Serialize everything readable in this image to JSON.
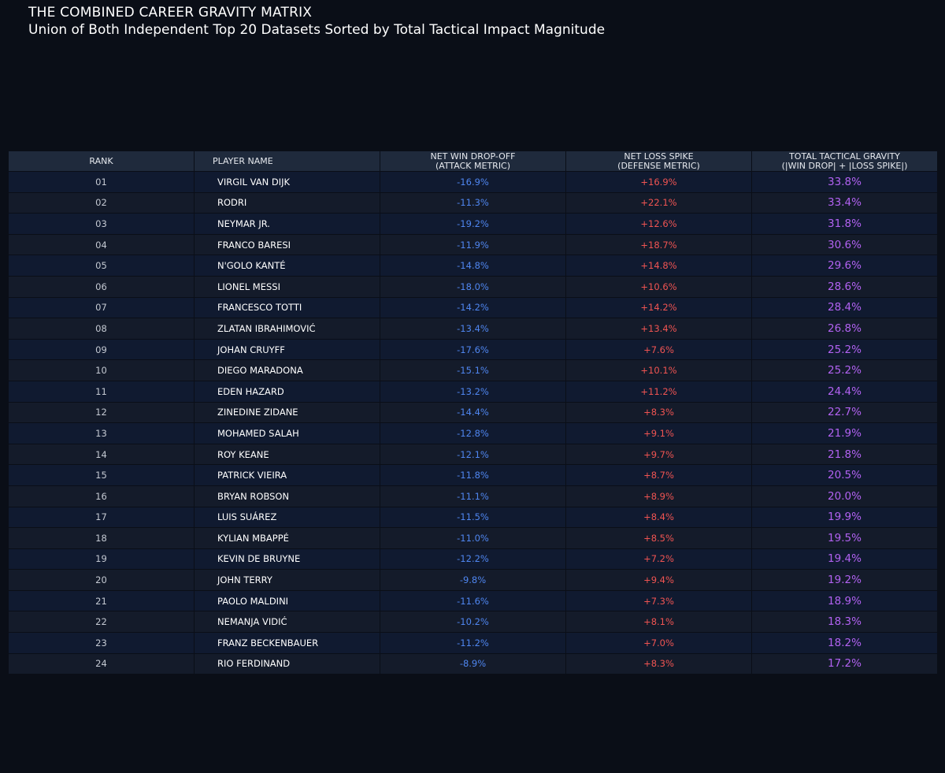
{
  "title": "THE COMBINED CAREER GRAVITY MATRIX",
  "subtitle": "Union of Both Independent Top 20 Datasets Sorted by Total Tactical Impact Magnitude",
  "colors": {
    "background": "#0a0e17",
    "header": "#1f2a3c",
    "attack": "#4f86f0",
    "defense": "#f05452",
    "gravity": "#b262f2"
  },
  "chart_data": {
    "type": "table",
    "title": "THE COMBINED CAREER GRAVITY MATRIX",
    "subtitle": "Union of Both Independent Top 20 Datasets Sorted by Total Tactical Impact Magnitude",
    "columns": [
      {
        "line1": "RANK",
        "line2": ""
      },
      {
        "line1": "PLAYER NAME",
        "line2": ""
      },
      {
        "line1": "NET WIN DROP-OFF",
        "line2": "(ATTACK METRIC)"
      },
      {
        "line1": "NET LOSS SPIKE",
        "line2": "(DEFENSE METRIC)"
      },
      {
        "line1": "TOTAL TACTICAL GRAVITY",
        "line2": "(|WIN DROP| + |LOSS SPIKE|)"
      }
    ],
    "rows": [
      {
        "rank": "01",
        "name": "VIRGIL VAN DIJK",
        "attack": "-16.9%",
        "defense": "+16.9%",
        "gravity": "33.8%"
      },
      {
        "rank": "02",
        "name": "RODRI",
        "attack": "-11.3%",
        "defense": "+22.1%",
        "gravity": "33.4%"
      },
      {
        "rank": "03",
        "name": "NEYMAR JR.",
        "attack": "-19.2%",
        "defense": "+12.6%",
        "gravity": "31.8%"
      },
      {
        "rank": "04",
        "name": "FRANCO BARESI",
        "attack": "-11.9%",
        "defense": "+18.7%",
        "gravity": "30.6%"
      },
      {
        "rank": "05",
        "name": "N'GOLO KANTÉ",
        "attack": "-14.8%",
        "defense": "+14.8%",
        "gravity": "29.6%"
      },
      {
        "rank": "06",
        "name": "LIONEL MESSI",
        "attack": "-18.0%",
        "defense": "+10.6%",
        "gravity": "28.6%"
      },
      {
        "rank": "07",
        "name": "FRANCESCO TOTTI",
        "attack": "-14.2%",
        "defense": "+14.2%",
        "gravity": "28.4%"
      },
      {
        "rank": "08",
        "name": "ZLATAN IBRAHIMOVIĆ",
        "attack": "-13.4%",
        "defense": "+13.4%",
        "gravity": "26.8%"
      },
      {
        "rank": "09",
        "name": "JOHAN CRUYFF",
        "attack": "-17.6%",
        "defense": "+7.6%",
        "gravity": "25.2%"
      },
      {
        "rank": "10",
        "name": "DIEGO MARADONA",
        "attack": "-15.1%",
        "defense": "+10.1%",
        "gravity": "25.2%"
      },
      {
        "rank": "11",
        "name": "EDEN HAZARD",
        "attack": "-13.2%",
        "defense": "+11.2%",
        "gravity": "24.4%"
      },
      {
        "rank": "12",
        "name": "ZINEDINE ZIDANE",
        "attack": "-14.4%",
        "defense": "+8.3%",
        "gravity": "22.7%"
      },
      {
        "rank": "13",
        "name": "MOHAMED SALAH",
        "attack": "-12.8%",
        "defense": "+9.1%",
        "gravity": "21.9%"
      },
      {
        "rank": "14",
        "name": "ROY KEANE",
        "attack": "-12.1%",
        "defense": "+9.7%",
        "gravity": "21.8%"
      },
      {
        "rank": "15",
        "name": "PATRICK VIEIRA",
        "attack": "-11.8%",
        "defense": "+8.7%",
        "gravity": "20.5%"
      },
      {
        "rank": "16",
        "name": "BRYAN ROBSON",
        "attack": "-11.1%",
        "defense": "+8.9%",
        "gravity": "20.0%"
      },
      {
        "rank": "17",
        "name": "LUIS SUÁREZ",
        "attack": "-11.5%",
        "defense": "+8.4%",
        "gravity": "19.9%"
      },
      {
        "rank": "18",
        "name": "KYLIAN MBAPPÉ",
        "attack": "-11.0%",
        "defense": "+8.5%",
        "gravity": "19.5%"
      },
      {
        "rank": "19",
        "name": "KEVIN DE BRUYNE",
        "attack": "-12.2%",
        "defense": "+7.2%",
        "gravity": "19.4%"
      },
      {
        "rank": "20",
        "name": "JOHN TERRY",
        "attack": "-9.8%",
        "defense": "+9.4%",
        "gravity": "19.2%"
      },
      {
        "rank": "21",
        "name": "PAOLO MALDINI",
        "attack": "-11.6%",
        "defense": "+7.3%",
        "gravity": "18.9%"
      },
      {
        "rank": "22",
        "name": "NEMANJA VIDIĆ",
        "attack": "-10.2%",
        "defense": "+8.1%",
        "gravity": "18.3%"
      },
      {
        "rank": "23",
        "name": "FRANZ BECKENBAUER",
        "attack": "-11.2%",
        "defense": "+7.0%",
        "gravity": "18.2%"
      },
      {
        "rank": "24",
        "name": "RIO FERDINAND",
        "attack": "-8.9%",
        "defense": "+8.3%",
        "gravity": "17.2%"
      }
    ]
  }
}
